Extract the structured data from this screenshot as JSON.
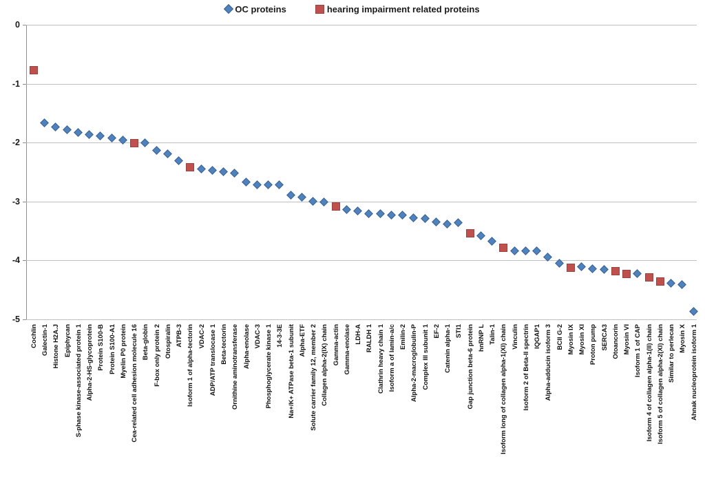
{
  "chart_data": {
    "type": "scatter",
    "title": "",
    "xlabel": "",
    "ylabel": "",
    "ylim": [
      -5,
      0
    ],
    "yticks": [
      "0",
      "-1",
      "-2",
      "-3",
      "-4",
      "-5"
    ],
    "grid": true,
    "legend": {
      "position": "top-center",
      "items": [
        {
          "label": "OC proteins",
          "series": "oc",
          "marker": "diamond",
          "color": "#4F81BD"
        },
        {
          "label": "hearing impairment related proteins",
          "series": "hi",
          "marker": "square",
          "color": "#C0504D"
        }
      ]
    },
    "points": [
      {
        "label": "Cochlin",
        "y": -0.78,
        "series": "hi"
      },
      {
        "label": "Galectin-1",
        "y": -1.68,
        "series": "oc"
      },
      {
        "label": "Histone H2A.J",
        "y": -1.75,
        "series": "oc"
      },
      {
        "label": "Epiphycan",
        "y": -1.79,
        "series": "oc"
      },
      {
        "label": "S-phase kinase-associated protein 1",
        "y": -1.84,
        "series": "oc"
      },
      {
        "label": "Alpha-2-HS-glycoprotein",
        "y": -1.87,
        "series": "oc"
      },
      {
        "label": "Protein S100-B",
        "y": -1.9,
        "series": "oc"
      },
      {
        "label": "Protein S100-A1",
        "y": -1.93,
        "series": "oc"
      },
      {
        "label": "Myelin P0 protein",
        "y": -1.97,
        "series": "oc"
      },
      {
        "label": "Cea-related cell adhesion molecule 16",
        "y": -2.01,
        "series": "hi"
      },
      {
        "label": "Beta-globin",
        "y": -2.02,
        "series": "oc"
      },
      {
        "label": "F-box only protein 2",
        "y": -2.14,
        "series": "oc"
      },
      {
        "label": "Otospiralin",
        "y": -2.2,
        "series": "oc"
      },
      {
        "label": "ATPB-3",
        "y": -2.32,
        "series": "oc"
      },
      {
        "label": "Isoform 1 of alpha-tectorin",
        "y": -2.42,
        "series": "hi"
      },
      {
        "label": "VDAC-2",
        "y": -2.46,
        "series": "oc"
      },
      {
        "label": "ADP/ATP translocase 1",
        "y": -2.48,
        "series": "oc"
      },
      {
        "label": "Beta-tectorin",
        "y": -2.5,
        "series": "oc"
      },
      {
        "label": "Ornithine aminotransferase",
        "y": -2.53,
        "series": "oc"
      },
      {
        "label": "Alpha-enolase",
        "y": -2.68,
        "series": "oc"
      },
      {
        "label": "VDAC-3",
        "y": -2.73,
        "series": "oc"
      },
      {
        "label": "Phosphoglycerate kinase 1",
        "y": -2.73,
        "series": "oc"
      },
      {
        "label": "14-3-3E",
        "y": -2.73,
        "series": "oc"
      },
      {
        "label": "Na+/K+ ATPase beta-1 subunit",
        "y": -2.9,
        "series": "oc"
      },
      {
        "label": "Alpha-ETF",
        "y": -2.94,
        "series": "oc"
      },
      {
        "label": "Solute carrier family 12, member 2",
        "y": -3.01,
        "series": "oc"
      },
      {
        "label": "Collagen alpha-2(IX) chain",
        "y": -3.02,
        "series": "oc"
      },
      {
        "label": "Gamma-actin",
        "y": -3.09,
        "series": "hi"
      },
      {
        "label": "Gamma-enolase",
        "y": -3.15,
        "series": "oc"
      },
      {
        "label": "LDH-A",
        "y": -3.17,
        "series": "oc"
      },
      {
        "label": "RALDH 1",
        "y": -3.22,
        "series": "oc"
      },
      {
        "label": "Clathrin heavy chain 1",
        "y": -3.22,
        "series": "oc"
      },
      {
        "label": "Isoform a of lamin-a/c",
        "y": -3.24,
        "series": "oc"
      },
      {
        "label": "Emilin-2",
        "y": -3.24,
        "series": "oc"
      },
      {
        "label": "Alpha-2-macroglobulin-P",
        "y": -3.29,
        "series": "oc"
      },
      {
        "label": "Complex III subunit 1",
        "y": -3.3,
        "series": "oc"
      },
      {
        "label": "EF-2",
        "y": -3.36,
        "series": "oc"
      },
      {
        "label": "Catenin alpha-1",
        "y": -3.39,
        "series": "oc"
      },
      {
        "label": "STI1",
        "y": -3.37,
        "series": "oc"
      },
      {
        "label": "Gap junction beta-6 protein",
        "y": -3.55,
        "series": "hi"
      },
      {
        "label": "hnRNP L",
        "y": -3.59,
        "series": "oc"
      },
      {
        "label": "Talin-1",
        "y": -3.68,
        "series": "oc"
      },
      {
        "label": "Isoform long of collagen alpha-1(XI) chain",
        "y": -3.79,
        "series": "hi"
      },
      {
        "label": "Vinculin",
        "y": -3.85,
        "series": "oc"
      },
      {
        "label": "Isoform 2 of Beta-II spectrin",
        "y": -3.85,
        "series": "oc"
      },
      {
        "label": "IQGAP1",
        "y": -3.85,
        "series": "oc"
      },
      {
        "label": "Alpha-adducin isoform 3",
        "y": -3.95,
        "series": "oc"
      },
      {
        "label": "BCII G-2",
        "y": -4.06,
        "series": "oc"
      },
      {
        "label": "Myosin IX",
        "y": -4.13,
        "series": "hi"
      },
      {
        "label": "Myosin XI",
        "y": -4.12,
        "series": "oc"
      },
      {
        "label": "Proton pump",
        "y": -4.15,
        "series": "oc"
      },
      {
        "label": "SERCA3",
        "y": -4.16,
        "series": "oc"
      },
      {
        "label": "Otoancorin",
        "y": -4.19,
        "series": "hi"
      },
      {
        "label": "Myosin VI",
        "y": -4.24,
        "series": "hi"
      },
      {
        "label": "Isoform 1 of CAP",
        "y": -4.24,
        "series": "oc"
      },
      {
        "label": "Isoform 4 of collagen alpha-1(II) chain",
        "y": -4.29,
        "series": "hi"
      },
      {
        "label": "Isoform 5 of collagen alpha-2(XI) chain",
        "y": -4.36,
        "series": "hi"
      },
      {
        "label": "Similar to perlecan",
        "y": -4.4,
        "series": "oc"
      },
      {
        "label": "Myosin X",
        "y": -4.42,
        "series": "oc"
      },
      {
        "label": "Ahnak nucleoprotein isoform 1",
        "y": -4.88,
        "series": "oc"
      }
    ]
  },
  "colors": {
    "oc_fill": "#4F81BD",
    "oc_border": "#3A6191",
    "hi_fill": "#C0504D",
    "hi_border": "#99423E",
    "gridline": "#BFBFBF",
    "axis": "#8C8C8C",
    "text": "#1A1A1A"
  }
}
